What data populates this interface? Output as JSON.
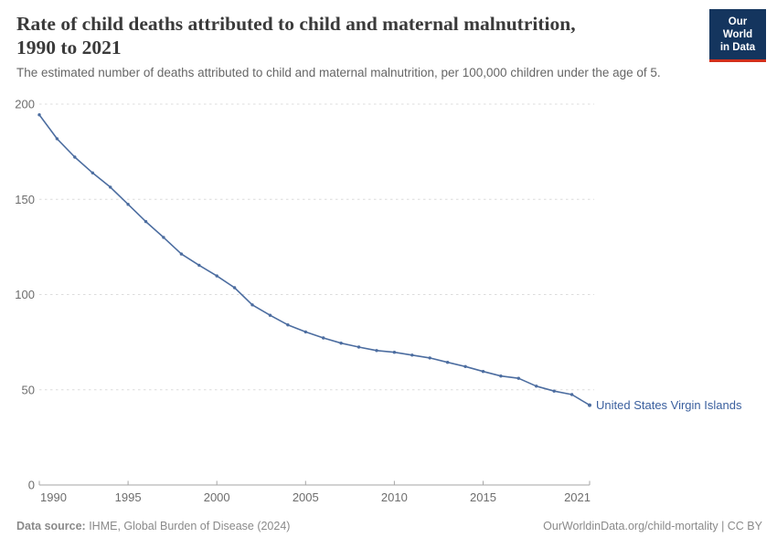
{
  "header": {
    "title_line1": "Rate of child deaths attributed to child and maternal malnutrition,",
    "title_line2": "1990 to 2021",
    "subtitle": "The estimated number of deaths attributed to child and maternal malnutrition, per 100,000 children under the age of 5."
  },
  "logo": {
    "line1": "Our World",
    "line2": "in Data"
  },
  "chart_data": {
    "type": "line",
    "title": "Rate of child deaths attributed to child and maternal malnutrition, 1990 to 2021",
    "subtitle": "The estimated number of deaths attributed to child and maternal malnutrition, per 100,000 children under the age of 5.",
    "x": [
      1990,
      1991,
      1992,
      1993,
      1994,
      1995,
      1996,
      1997,
      1998,
      1999,
      2000,
      2001,
      2002,
      2003,
      2004,
      2005,
      2006,
      2007,
      2008,
      2009,
      2010,
      2011,
      2012,
      2013,
      2014,
      2015,
      2016,
      2017,
      2018,
      2019,
      2020,
      2021
    ],
    "series": [
      {
        "name": "United States Virgin Islands",
        "values": [
          194.4,
          181.8,
          172.2,
          163.9,
          156.4,
          147.4,
          138.3,
          130.0,
          121.3,
          115.4,
          109.8,
          103.6,
          94.6,
          89.1,
          84.1,
          80.4,
          77.2,
          74.5,
          72.4,
          70.6,
          69.7,
          68.2,
          66.7,
          64.4,
          62.2,
          59.6,
          57.2,
          56.0,
          51.9,
          49.3,
          47.5,
          41.9
        ]
      }
    ],
    "end_label": "United States Virgin Islands",
    "x_ticks": [
      1990,
      1995,
      2000,
      2005,
      2010,
      2015,
      2021
    ],
    "y_ticks": [
      0,
      50,
      100,
      150,
      200
    ],
    "xlim": [
      1990,
      2021
    ],
    "ylim": [
      0,
      200
    ],
    "xlabel": "",
    "ylabel": "",
    "grid": "horizontal-dashed",
    "legend_position": "line-end-label"
  },
  "footer": {
    "source_bold": "Data source:",
    "source_text": " IHME, Global Burden of Disease (2024)",
    "credit": "OurWorldinData.org/child-mortality | CC BY"
  },
  "colors": {
    "line": "#4c6da0",
    "end_label": "#3a5f9e",
    "grid": "#dcdcdc",
    "axis": "#a6a6a6",
    "tick_label": "#6d6d6d",
    "title": "#3a3a3a",
    "subtitle": "#666666",
    "footer": "#8a8a8a",
    "logo_bg": "#14355e",
    "logo_accent": "#d2301c"
  }
}
